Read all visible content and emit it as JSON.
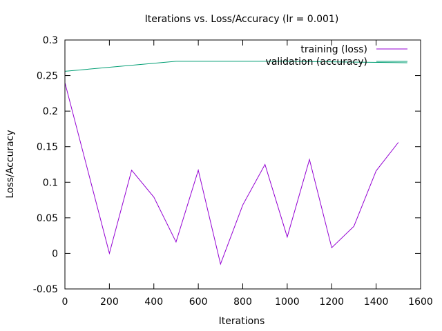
{
  "chart_data": {
    "type": "line",
    "title": "Iterations vs. Loss/Accuracy (lr = 0.001)",
    "xlabel": "Iterations",
    "ylabel": "Loss/Accuracy",
    "xlim": [
      0,
      1600
    ],
    "ylim": [
      -0.05,
      0.3
    ],
    "x_ticks": [
      0,
      200,
      400,
      600,
      800,
      1000,
      1200,
      1400,
      1600
    ],
    "x_tick_labels": [
      "0",
      "200",
      "400",
      "600",
      "800",
      "1000",
      "1200",
      "1400",
      "1600"
    ],
    "y_ticks": [
      -0.05,
      0,
      0.05,
      0.1,
      0.15,
      0.2,
      0.25,
      0.3
    ],
    "y_tick_labels": [
      "-0.05",
      "0",
      "0.05",
      "0.1",
      "0.15",
      "0.2",
      "0.25",
      "0.3"
    ],
    "grid": false,
    "legend_position": "top-right",
    "series": [
      {
        "name": "training (loss)",
        "color": "#9400d3",
        "x": [
          0,
          200,
          300,
          400,
          500,
          600,
          700,
          800,
          900,
          1000,
          1100,
          1200,
          1300,
          1400,
          1500
        ],
        "y": [
          0.24,
          0.0,
          0.117,
          0.079,
          0.016,
          0.117,
          -0.015,
          0.068,
          0.125,
          0.023,
          0.132,
          0.008,
          0.038,
          0.116,
          0.156
        ]
      },
      {
        "name": "validation (accuracy)",
        "color": "#009e73",
        "x": [
          0,
          500,
          1000,
          1540
        ],
        "y": [
          0.256,
          0.27,
          0.27,
          0.268
        ]
      }
    ]
  }
}
